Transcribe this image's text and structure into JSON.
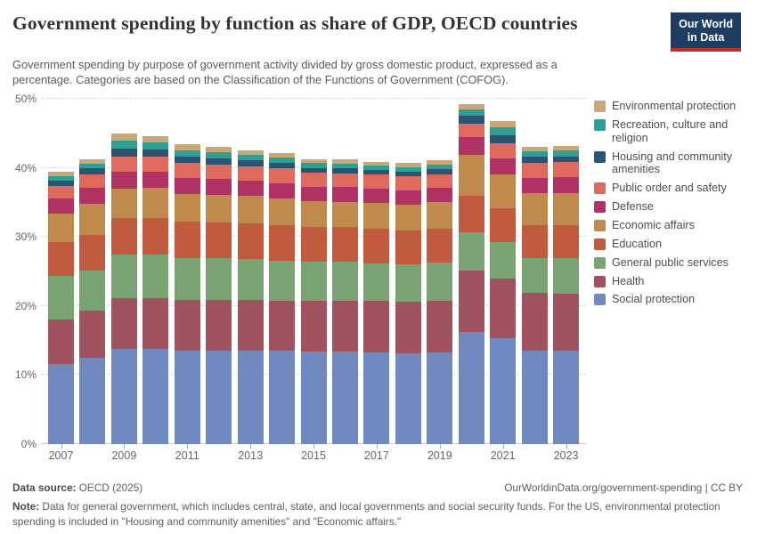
{
  "header": {
    "title": "Government spending by function as share of GDP, OECD countries",
    "subtitle": "Government spending by purpose of government activity divided by gross domestic product, expressed as a percentage. Categories are based on the Classification of the Functions of Government (COFOG).",
    "logo": {
      "line1": "Our World",
      "line2": "in Data",
      "bg_color": "#1D3D63",
      "accent_color": "#C32E22"
    }
  },
  "chart_data": {
    "type": "bar",
    "stacked": true,
    "title": "Government spending by function as share of GDP, OECD countries",
    "unit": "% of GDP",
    "xlabel": "",
    "ylabel": "",
    "ylim": [
      0,
      50
    ],
    "grid": true,
    "legend_position": "right",
    "y_ticks": [
      "0%",
      "10%",
      "20%",
      "30%",
      "40%",
      "50%"
    ],
    "categories": [
      "2007",
      "2008",
      "2009",
      "2010",
      "2011",
      "2012",
      "2013",
      "2014",
      "2015",
      "2016",
      "2017",
      "2018",
      "2019",
      "2020",
      "2021",
      "2022",
      "2023"
    ],
    "x_tick_labels": [
      "2007",
      "2009",
      "2011",
      "2013",
      "2015",
      "2017",
      "2019",
      "2021",
      "2023"
    ],
    "series": [
      {
        "name": "Social protection",
        "color": "#7189BE",
        "values": [
          11.6,
          12.5,
          13.8,
          13.8,
          13.6,
          13.6,
          13.6,
          13.5,
          13.4,
          13.4,
          13.3,
          13.2,
          13.3,
          16.3,
          15.4,
          13.6,
          13.5
        ]
      },
      {
        "name": "Health",
        "color": "#A0525F",
        "values": [
          6.4,
          6.8,
          7.4,
          7.4,
          7.3,
          7.3,
          7.3,
          7.3,
          7.4,
          7.4,
          7.4,
          7.4,
          7.5,
          8.8,
          8.6,
          8.3,
          8.3
        ]
      },
      {
        "name": "General public services",
        "color": "#7AA373",
        "values": [
          6.3,
          5.8,
          6.2,
          6.2,
          6.0,
          6.0,
          5.9,
          5.8,
          5.6,
          5.6,
          5.5,
          5.5,
          5.5,
          5.6,
          5.2,
          5.1,
          5.2
        ]
      },
      {
        "name": "Education",
        "color": "#C15B3F",
        "values": [
          5.0,
          5.2,
          5.4,
          5.4,
          5.3,
          5.2,
          5.2,
          5.1,
          5.0,
          5.0,
          5.0,
          4.9,
          4.9,
          5.2,
          4.9,
          4.7,
          4.7
        ]
      },
      {
        "name": "Economic affairs",
        "color": "#C08A4C",
        "values": [
          4.1,
          4.5,
          4.2,
          4.3,
          4.0,
          4.0,
          3.9,
          3.9,
          3.8,
          3.7,
          3.7,
          3.7,
          3.8,
          6.0,
          4.9,
          4.6,
          4.6
        ]
      },
      {
        "name": "Defense",
        "color": "#B13366",
        "values": [
          2.2,
          2.3,
          2.5,
          2.4,
          2.3,
          2.3,
          2.2,
          2.2,
          2.1,
          2.1,
          2.1,
          2.1,
          2.1,
          2.6,
          2.4,
          2.3,
          2.4
        ]
      },
      {
        "name": "Public order and safety",
        "color": "#E0695E",
        "values": [
          1.8,
          1.9,
          2.2,
          2.2,
          2.2,
          2.1,
          2.1,
          2.1,
          2.0,
          2.0,
          2.0,
          2.0,
          2.0,
          1.9,
          2.2,
          2.1,
          2.1
        ]
      },
      {
        "name": "Housing and community amenities",
        "color": "#2D5372",
        "values": [
          0.8,
          0.9,
          1.1,
          1.0,
          1.0,
          0.9,
          0.9,
          0.8,
          0.7,
          0.7,
          0.7,
          0.7,
          0.7,
          1.1,
          1.1,
          0.9,
          0.9
        ]
      },
      {
        "name": "Recreation, culture and religion",
        "color": "#2F9E93",
        "values": [
          0.6,
          0.7,
          1.2,
          1.0,
          0.9,
          0.9,
          0.8,
          0.8,
          0.7,
          0.7,
          0.6,
          0.6,
          0.7,
          1.0,
          1.2,
          0.8,
          0.9
        ]
      },
      {
        "name": "Environmental protection",
        "color": "#C8A878",
        "values": [
          0.6,
          0.7,
          1.0,
          0.9,
          0.8,
          0.7,
          0.7,
          0.6,
          0.6,
          0.6,
          0.6,
          0.6,
          0.6,
          0.7,
          0.9,
          0.6,
          0.6
        ]
      }
    ]
  },
  "footer": {
    "source_label": "Data source:",
    "source_value": " OECD (2025)",
    "link_text": "OurWorldinData.org/government-spending",
    "separator": " | ",
    "license": "CC BY",
    "note_label": "Note:",
    "note_text": " Data for general government, which includes central, state, and local governments and social security funds. For the US, environmental protection spending is included in \"Housing and community amenities\" and \"Economic affairs.\""
  }
}
